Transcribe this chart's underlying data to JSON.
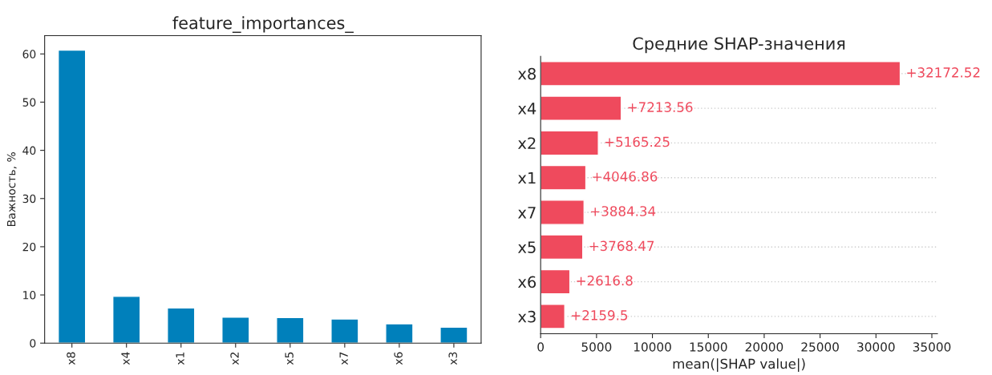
{
  "chart_data": [
    {
      "type": "bar",
      "title": "feature_importances_",
      "ylabel": "Важность, %",
      "categories": [
        "x8",
        "x4",
        "x1",
        "x2",
        "x5",
        "x7",
        "x6",
        "x3"
      ],
      "values": [
        60.8,
        9.7,
        7.3,
        5.4,
        5.3,
        5.0,
        4.0,
        3.3
      ],
      "color": "#0080bb",
      "ylim": [
        0,
        63.8
      ],
      "yticks": [
        0,
        10,
        20,
        30,
        40,
        50,
        60
      ],
      "grid": false
    },
    {
      "type": "bar",
      "orientation": "horizontal",
      "title": "Средние SHAP-значения",
      "xlabel": "mean(|SHAP value|)",
      "categories": [
        "x8",
        "x4",
        "x2",
        "x1",
        "x7",
        "x5",
        "x6",
        "x3"
      ],
      "values": [
        32172.52,
        7213.56,
        5165.25,
        4046.86,
        3884.34,
        3768.47,
        2616.8,
        2159.5
      ],
      "value_labels": [
        "+32172.52",
        "+7213.56",
        "+5165.25",
        "+4046.86",
        "+3884.34",
        "+3768.47",
        "+2616.8",
        "+2159.5"
      ],
      "color": "#ef4a5d",
      "xlim": [
        0,
        35500
      ],
      "xticks": [
        0,
        5000,
        10000,
        15000,
        20000,
        25000,
        30000,
        35000
      ],
      "grid": "y"
    }
  ]
}
